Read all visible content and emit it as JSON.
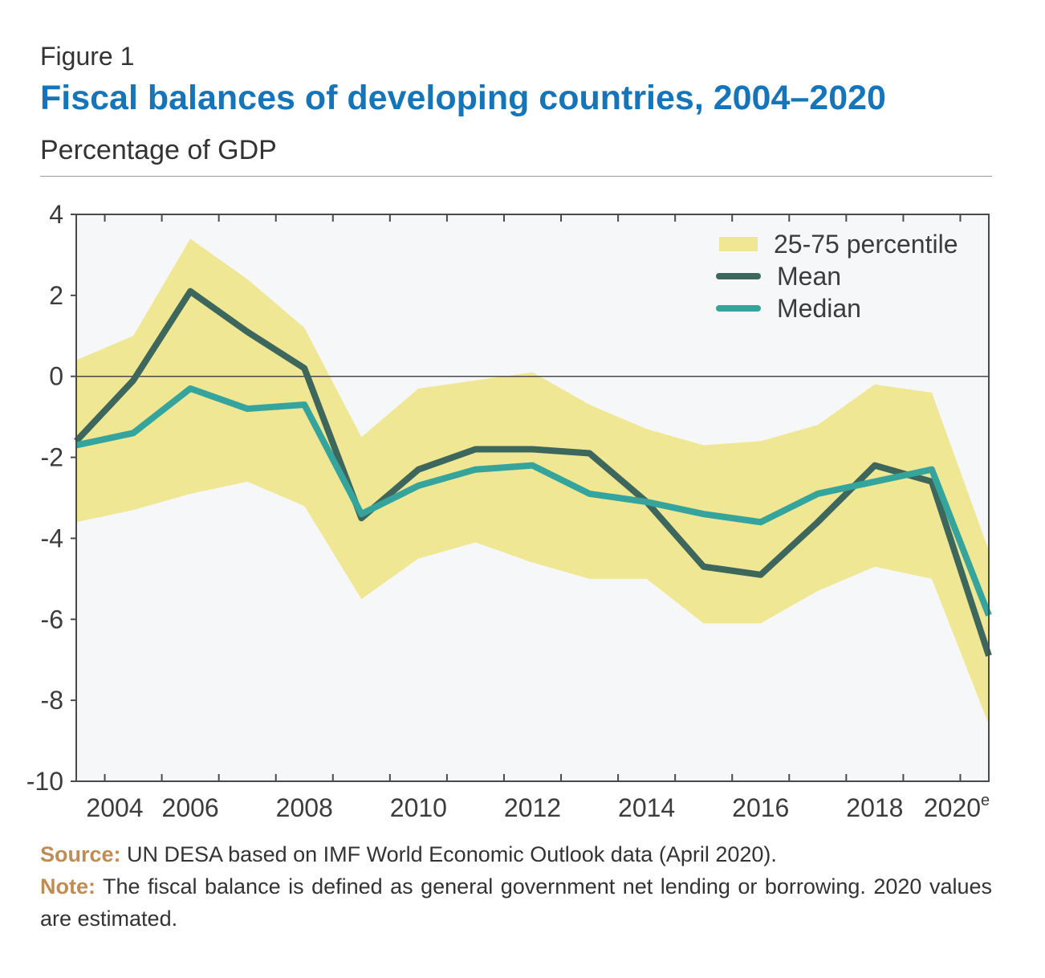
{
  "figure_label": "Figure 1",
  "title": "Fiscal balances of developing countries, 2004–2020",
  "subtitle": "Percentage of GDP",
  "colors": {
    "title": "#1674b8",
    "band": "#efe793",
    "mean": "#3d665c",
    "median": "#34a49c",
    "plot_bg": "#f6f7f8",
    "note_label": "#c08c56"
  },
  "chart_data": {
    "type": "line",
    "x": [
      2004,
      2005,
      2006,
      2007,
      2008,
      2009,
      2010,
      2011,
      2012,
      2013,
      2014,
      2015,
      2016,
      2017,
      2018,
      2019,
      2020
    ],
    "x_tick_labels": [
      {
        "year": 2004,
        "label": "2004",
        "sup": ""
      },
      {
        "year": 2006,
        "label": "2006",
        "sup": ""
      },
      {
        "year": 2008,
        "label": "2008",
        "sup": ""
      },
      {
        "year": 2010,
        "label": "2010",
        "sup": ""
      },
      {
        "year": 2012,
        "label": "2012",
        "sup": ""
      },
      {
        "year": 2014,
        "label": "2014",
        "sup": ""
      },
      {
        "year": 2016,
        "label": "2016",
        "sup": ""
      },
      {
        "year": 2018,
        "label": "2018",
        "sup": ""
      },
      {
        "year": 2020,
        "label": "2020",
        "sup": "e"
      }
    ],
    "y_ticks": [
      4,
      2,
      0,
      -2,
      -4,
      -6,
      -8,
      -10
    ],
    "ylim": [
      -10,
      4
    ],
    "series": [
      {
        "name": "Mean",
        "values": [
          -1.6,
          -0.1,
          2.1,
          1.1,
          0.2,
          -3.5,
          -2.3,
          -1.8,
          -1.8,
          -1.9,
          -3.1,
          -4.7,
          -4.9,
          -3.6,
          -2.2,
          -2.6,
          -6.9
        ]
      },
      {
        "name": "Median",
        "values": [
          -1.7,
          -1.4,
          -0.3,
          -0.8,
          -0.7,
          -3.4,
          -2.7,
          -2.3,
          -2.2,
          -2.9,
          -3.1,
          -3.4,
          -3.6,
          -2.9,
          -2.6,
          -2.3,
          -5.9
        ]
      }
    ],
    "band": {
      "name": "25-75 percentile",
      "upper": [
        0.4,
        1.0,
        3.4,
        2.4,
        1.2,
        -1.5,
        -0.3,
        -0.1,
        0.1,
        -0.7,
        -1.3,
        -1.7,
        -1.6,
        -1.2,
        -0.2,
        -0.4,
        -4.3
      ],
      "lower": [
        -3.6,
        -3.3,
        -2.9,
        -2.6,
        -3.2,
        -5.5,
        -4.5,
        -4.1,
        -4.6,
        -5.0,
        -5.0,
        -6.1,
        -6.1,
        -5.3,
        -4.7,
        -5.0,
        -8.6
      ]
    },
    "legend": [
      "25-75 percentile",
      "Mean",
      "Median"
    ],
    "legend_position": "top-right",
    "grid": false
  },
  "source": {
    "label": "Source:",
    "text": " UN DESA based on IMF World Economic Outlook data (April 2020)."
  },
  "note": {
    "label": "Note:",
    "text": " The fiscal balance is defined as general government net lending or borrowing. 2020 values are estimated."
  }
}
